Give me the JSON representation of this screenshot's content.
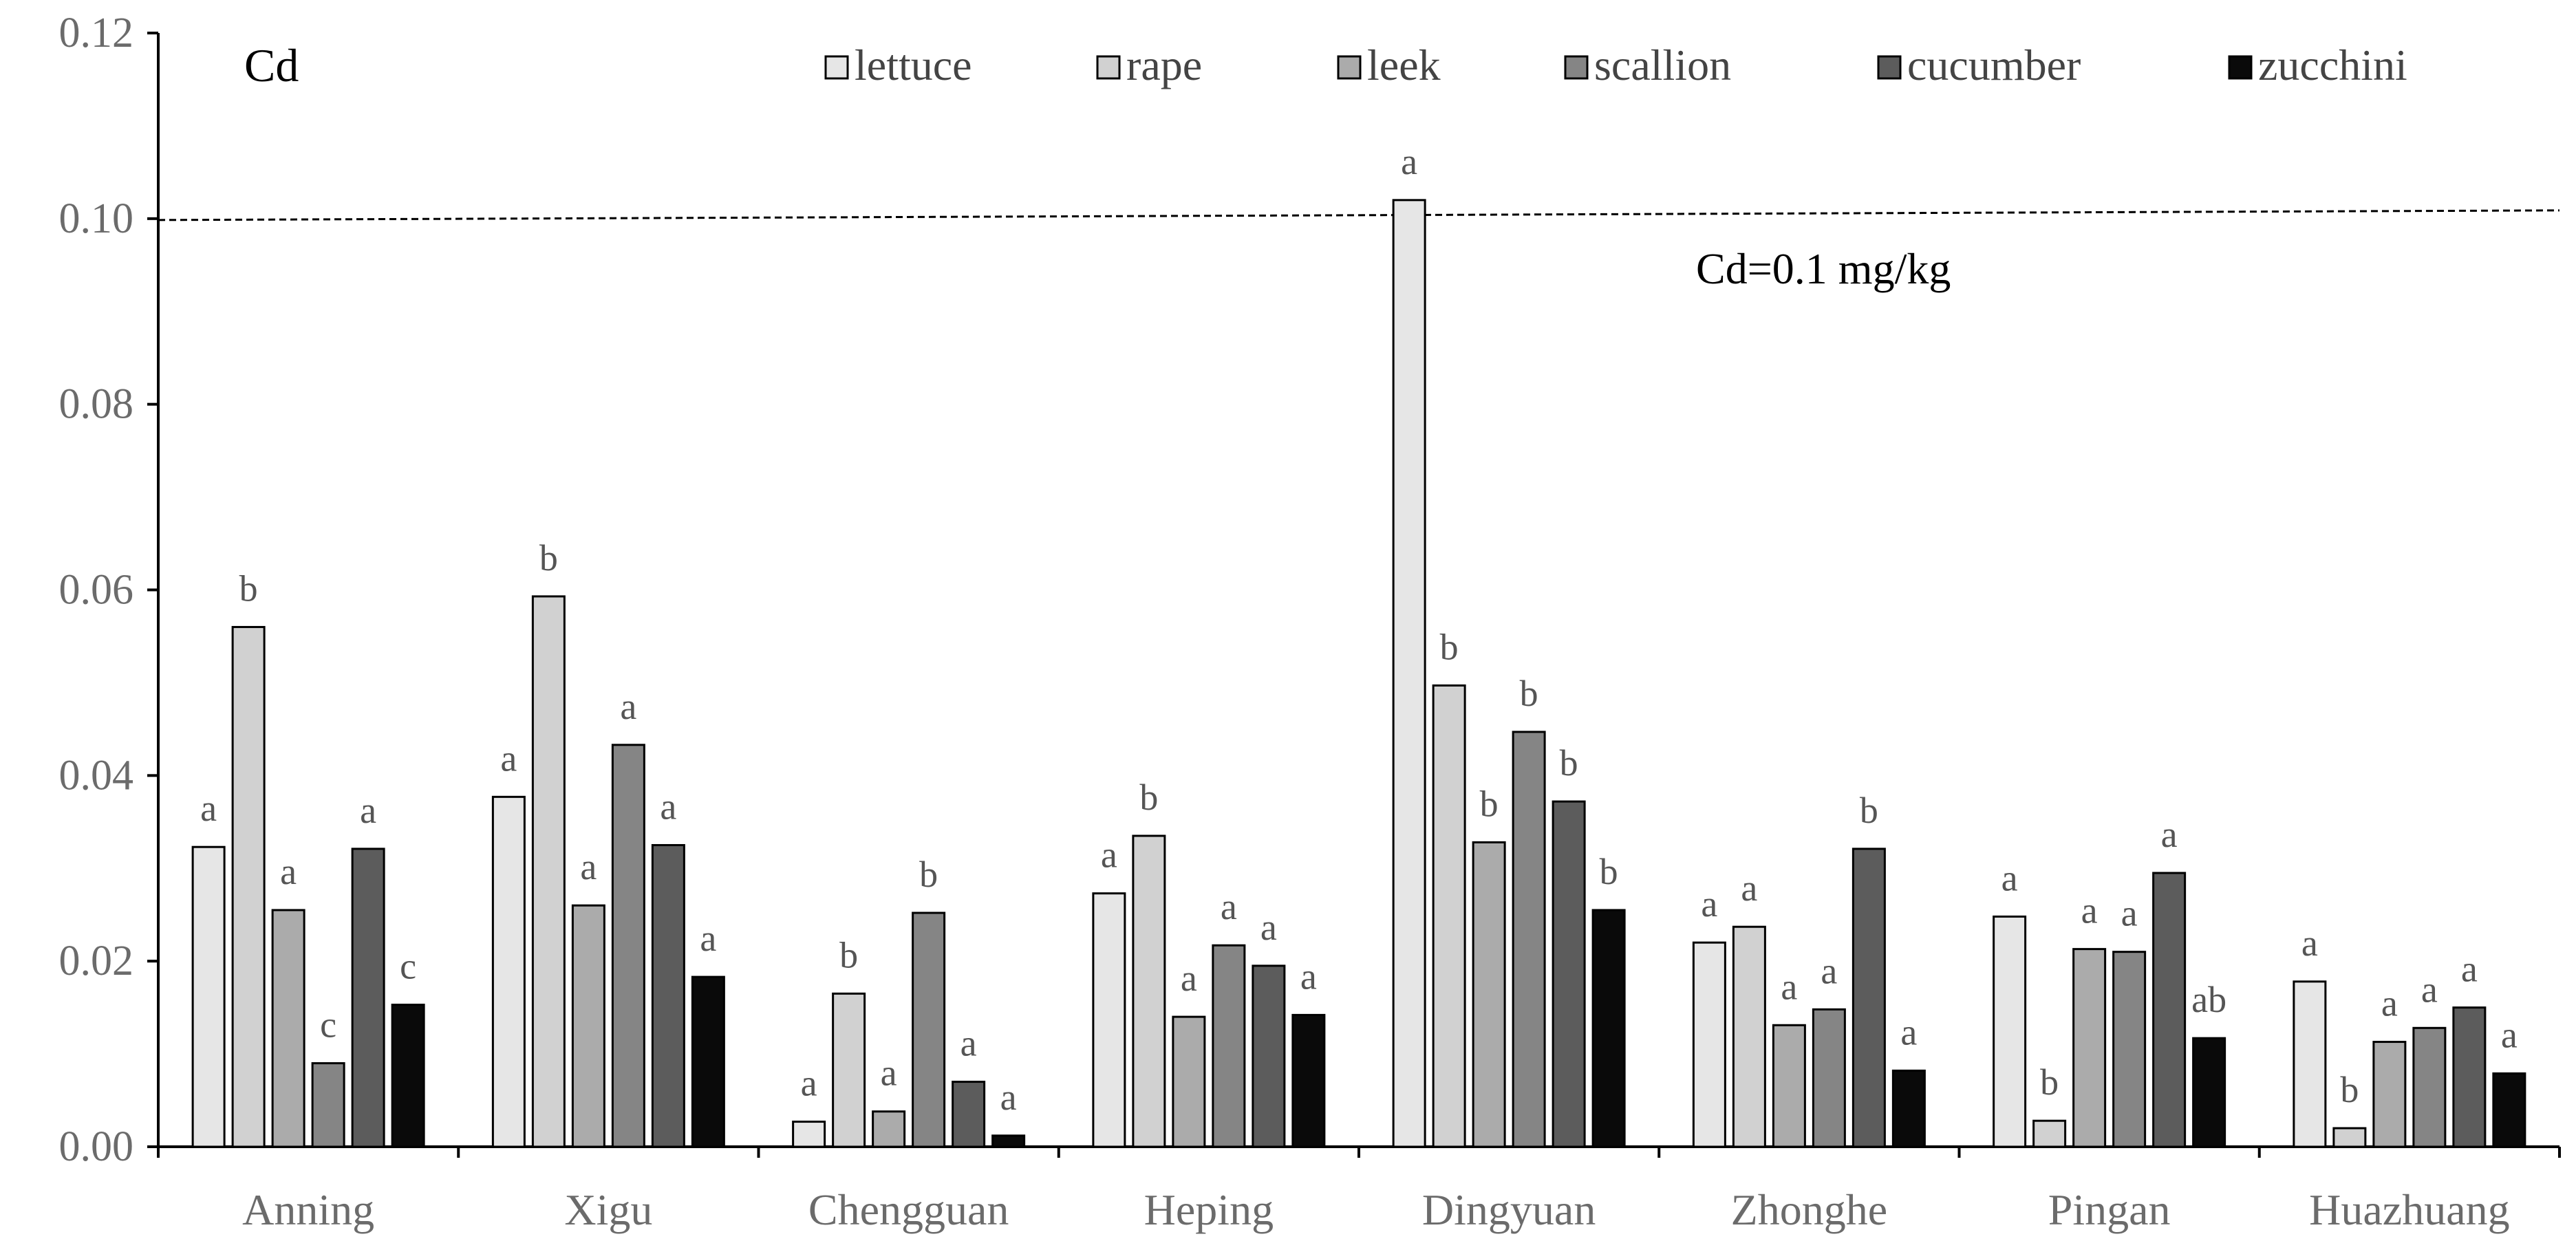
{
  "chart_data": {
    "type": "bar",
    "title": "Cd",
    "xlabel": "",
    "ylabel": "",
    "ylim": [
      0,
      0.12
    ],
    "yticks": [
      "0.00",
      "0.02",
      "0.04",
      "0.06",
      "0.08",
      "0.10",
      "0.12"
    ],
    "legend_position": "top",
    "grid": false,
    "categories": [
      "Anning",
      "Xigu",
      "Chengguan",
      "Heping",
      "Dingyuan",
      "Zhonghe",
      "Pingan",
      "Huazhuang"
    ],
    "series": [
      {
        "name": "lettuce",
        "color": "#e6e6e6",
        "values": [
          0.0323,
          0.0377,
          0.0027,
          0.0273,
          0.102,
          0.022,
          0.0248,
          0.0178
        ],
        "labels": [
          "a",
          "a",
          "a",
          "a",
          "a",
          "a",
          "a",
          "a"
        ]
      },
      {
        "name": "rape",
        "color": "#d1d1d1",
        "values": [
          0.056,
          0.0593,
          0.0165,
          0.0335,
          0.0497,
          0.0237,
          0.0028,
          0.002
        ],
        "labels": [
          "b",
          "b",
          "b",
          "b",
          "b",
          "a",
          "b",
          "b"
        ]
      },
      {
        "name": "leek",
        "color": "#ababab",
        "values": [
          0.0255,
          0.026,
          0.0038,
          0.014,
          0.0328,
          0.0131,
          0.0213,
          0.0113
        ],
        "labels": [
          "a",
          "a",
          "a",
          "a",
          "b",
          "a",
          "a",
          "a"
        ]
      },
      {
        "name": "scallion",
        "color": "#858585",
        "values": [
          0.009,
          0.0433,
          0.0252,
          0.0217,
          0.0447,
          0.0148,
          0.021,
          0.0128
        ],
        "labels": [
          "c",
          "a",
          "b",
          "a",
          "b",
          "a",
          "a",
          "a"
        ]
      },
      {
        "name": "cucumber",
        "color": "#5c5c5c",
        "values": [
          0.0321,
          0.0325,
          0.007,
          0.0195,
          0.0372,
          0.0321,
          0.0295,
          0.015
        ],
        "labels": [
          "a",
          "a",
          "a",
          "a",
          "b",
          "b",
          "a",
          "a"
        ]
      },
      {
        "name": "zucchini",
        "color": "#0a0a0a",
        "values": [
          0.0153,
          0.0183,
          0.0012,
          0.0142,
          0.0255,
          0.0082,
          0.0117,
          0.0079
        ],
        "labels": [
          "c",
          "a",
          "a",
          "a",
          "b",
          "a",
          "ab",
          "a"
        ]
      }
    ],
    "reference_line": {
      "value": 0.1,
      "label": "Cd=0.1 mg/kg",
      "style": "dashed"
    }
  }
}
